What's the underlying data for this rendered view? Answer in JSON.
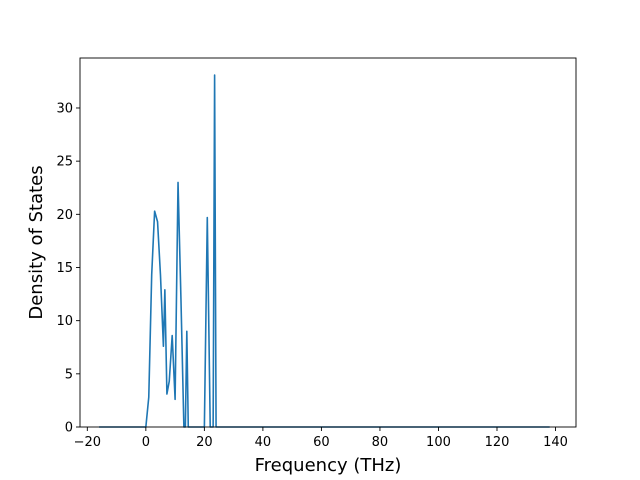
{
  "chart_data": {
    "type": "line",
    "title": "",
    "xlabel": "Frequency (THz)",
    "ylabel": "Density of States",
    "xlim": [
      -22.5,
      147.0
    ],
    "ylim": [
      0,
      34.7
    ],
    "xticks": [
      -20,
      0,
      20,
      40,
      60,
      80,
      100,
      120,
      140
    ],
    "yticks": [
      0,
      5,
      10,
      15,
      20,
      25,
      30
    ],
    "grid": false,
    "legend": "none",
    "series_color": "#1f77b4",
    "series": [
      {
        "x": [
          -16,
          -1,
          0,
          1,
          2,
          3,
          4,
          5,
          6,
          6.5,
          7.2,
          8,
          9,
          10,
          11,
          12,
          13,
          13.5,
          14,
          14.5,
          15,
          16,
          17,
          18,
          19,
          20,
          21,
          22,
          22.5,
          23,
          23.5,
          24,
          25,
          40,
          138
        ],
        "y": [
          0,
          0,
          0,
          2.8,
          14.3,
          20.3,
          19.3,
          14.3,
          7.6,
          12.9,
          3.1,
          4.3,
          8.6,
          2.6,
          23.0,
          12.0,
          0,
          0,
          9.0,
          0,
          0,
          0,
          0,
          0,
          0,
          0,
          19.7,
          0,
          0,
          0,
          33.1,
          0,
          0,
          0,
          0
        ]
      }
    ]
  }
}
